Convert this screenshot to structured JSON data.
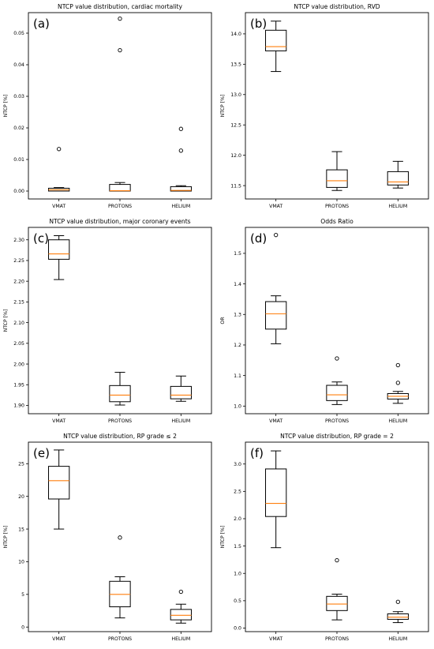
{
  "colors": {
    "box": "#000000",
    "median": "#ff7f0e",
    "background": "#ffffff"
  },
  "chart_data": [
    {
      "type": "box",
      "panel_label": "(a)",
      "title": "NTCP value distribution, cardiac mortality",
      "ylabel": "NTCP [%]",
      "xlabel": "",
      "categories": [
        "VMAT",
        "PROTONS",
        "HELIUM"
      ],
      "ylim": [
        -0.0025,
        0.0565
      ],
      "yticks": [
        0.0,
        0.01,
        0.02,
        0.03,
        0.04,
        0.05
      ],
      "ytick_labels": [
        "0.00",
        "0.01",
        "0.02",
        "0.03",
        "0.04",
        "0.05"
      ],
      "boxes": [
        {
          "category": "VMAT",
          "whislo": 0.0,
          "q1": 0.0,
          "med": 0.0004,
          "q3": 0.0009,
          "whishi": 0.0011,
          "fliers": [
            0.0133
          ]
        },
        {
          "category": "PROTONS",
          "whislo": 0.0,
          "q1": 0.0,
          "med": 0.0001,
          "q3": 0.0021,
          "whishi": 0.0027,
          "fliers": [
            0.0446,
            0.0546
          ]
        },
        {
          "category": "HELIUM",
          "whislo": 0.0,
          "q1": 0.0,
          "med": 0.0002,
          "q3": 0.0014,
          "whishi": 0.0017,
          "fliers": [
            0.0128,
            0.0197
          ]
        }
      ]
    },
    {
      "type": "box",
      "panel_label": "(b)",
      "title": "NTCP value distribution, RVD",
      "ylabel": "NTCP [%]",
      "xlabel": "",
      "categories": [
        "VMAT",
        "PROTONS",
        "HELIUM"
      ],
      "ylim": [
        11.28,
        14.35
      ],
      "yticks": [
        11.5,
        12.0,
        12.5,
        13.0,
        13.5,
        14.0
      ],
      "ytick_labels": [
        "11.5",
        "12.0",
        "12.5",
        "13.0",
        "13.5",
        "14.0"
      ],
      "boxes": [
        {
          "category": "VMAT",
          "whislo": 13.38,
          "q1": 13.72,
          "med": 13.79,
          "q3": 14.06,
          "whishi": 14.21,
          "fliers": []
        },
        {
          "category": "PROTONS",
          "whislo": 11.42,
          "q1": 11.47,
          "med": 11.58,
          "q3": 11.76,
          "whishi": 12.06,
          "fliers": []
        },
        {
          "category": "HELIUM",
          "whislo": 11.46,
          "q1": 11.51,
          "med": 11.56,
          "q3": 11.73,
          "whishi": 11.9,
          "fliers": []
        }
      ]
    },
    {
      "type": "box",
      "panel_label": "(c)",
      "title": "NTCP value distribution, major coronary events",
      "ylabel": "NTCP [%]",
      "xlabel": "",
      "categories": [
        "VMAT",
        "PROTONS",
        "HELIUM"
      ],
      "ylim": [
        1.88,
        2.33
      ],
      "yticks": [
        1.9,
        1.95,
        2.0,
        2.05,
        2.1,
        2.15,
        2.2,
        2.25,
        2.3
      ],
      "ytick_labels": [
        "1.90",
        "1.95",
        "2.00",
        "2.05",
        "2.10",
        "2.15",
        "2.20",
        "2.25",
        "2.30"
      ],
      "boxes": [
        {
          "category": "VMAT",
          "whislo": 2.204,
          "q1": 2.253,
          "med": 2.266,
          "q3": 2.3,
          "whishi": 2.31,
          "fliers": []
        },
        {
          "category": "PROTONS",
          "whislo": 1.901,
          "q1": 1.909,
          "med": 1.925,
          "q3": 1.948,
          "whishi": 1.98,
          "fliers": []
        },
        {
          "category": "HELIUM",
          "whislo": 1.91,
          "q1": 1.916,
          "med": 1.925,
          "q3": 1.946,
          "whishi": 1.971,
          "fliers": []
        }
      ]
    },
    {
      "type": "box",
      "panel_label": "(d)",
      "title": "Odds Ratio",
      "ylabel": "OR",
      "xlabel": "",
      "categories": [
        "VMAT",
        "PROTONS",
        "HELIUM"
      ],
      "ylim": [
        0.975,
        1.585
      ],
      "yticks": [
        1.0,
        1.1,
        1.2,
        1.3,
        1.4,
        1.5
      ],
      "ytick_labels": [
        "1.0",
        "1.1",
        "1.2",
        "1.3",
        "1.4",
        "1.5"
      ],
      "boxes": [
        {
          "category": "VMAT",
          "whislo": 1.204,
          "q1": 1.252,
          "med": 1.302,
          "q3": 1.342,
          "whishi": 1.361,
          "fliers": [
            1.56
          ]
        },
        {
          "category": "PROTONS",
          "whislo": 1.005,
          "q1": 1.018,
          "med": 1.037,
          "q3": 1.068,
          "whishi": 1.079,
          "fliers": [
            1.156
          ]
        },
        {
          "category": "HELIUM",
          "whislo": 1.009,
          "q1": 1.023,
          "med": 1.032,
          "q3": 1.041,
          "whishi": 1.048,
          "fliers": [
            1.076,
            1.134
          ]
        }
      ]
    },
    {
      "type": "box",
      "panel_label": "(e)",
      "title": "NTCP value distribution, RP grade ≤ 2",
      "ylabel": "NTCP [%]",
      "xlabel": "",
      "categories": [
        "VMAT",
        "PROTONS",
        "HELIUM"
      ],
      "ylim": [
        -0.7,
        28.3
      ],
      "yticks": [
        0,
        5,
        10,
        15,
        20,
        25
      ],
      "ytick_labels": [
        "0",
        "5",
        "10",
        "15",
        "20",
        "25"
      ],
      "boxes": [
        {
          "category": "VMAT",
          "whislo": 15.0,
          "q1": 19.6,
          "med": 22.4,
          "q3": 24.6,
          "whishi": 27.1,
          "fliers": []
        },
        {
          "category": "PROTONS",
          "whislo": 1.4,
          "q1": 3.1,
          "med": 5.0,
          "q3": 7.0,
          "whishi": 7.7,
          "fliers": [
            13.7
          ]
        },
        {
          "category": "HELIUM",
          "whislo": 0.6,
          "q1": 1.1,
          "med": 1.8,
          "q3": 2.7,
          "whishi": 3.5,
          "fliers": [
            5.4
          ]
        }
      ]
    },
    {
      "type": "box",
      "panel_label": "(f)",
      "title": "NTCP value distribution, RP grade = 2",
      "ylabel": "NTCP [%]",
      "xlabel": "",
      "categories": [
        "VMAT",
        "PROTONS",
        "HELIUM"
      ],
      "ylim": [
        -0.065,
        3.4
      ],
      "yticks": [
        0.0,
        0.5,
        1.0,
        1.5,
        2.0,
        2.5,
        3.0
      ],
      "ytick_labels": [
        "0.0",
        "0.5",
        "1.0",
        "1.5",
        "2.0",
        "2.5",
        "3.0"
      ],
      "boxes": [
        {
          "category": "VMAT",
          "whislo": 1.47,
          "q1": 2.04,
          "med": 2.28,
          "q3": 2.91,
          "whishi": 3.24,
          "fliers": []
        },
        {
          "category": "PROTONS",
          "whislo": 0.15,
          "q1": 0.32,
          "med": 0.44,
          "q3": 0.58,
          "whishi": 0.62,
          "fliers": [
            1.24
          ]
        },
        {
          "category": "HELIUM",
          "whislo": 0.1,
          "q1": 0.16,
          "med": 0.2,
          "q3": 0.26,
          "whishi": 0.3,
          "fliers": [
            0.48
          ]
        }
      ]
    }
  ]
}
